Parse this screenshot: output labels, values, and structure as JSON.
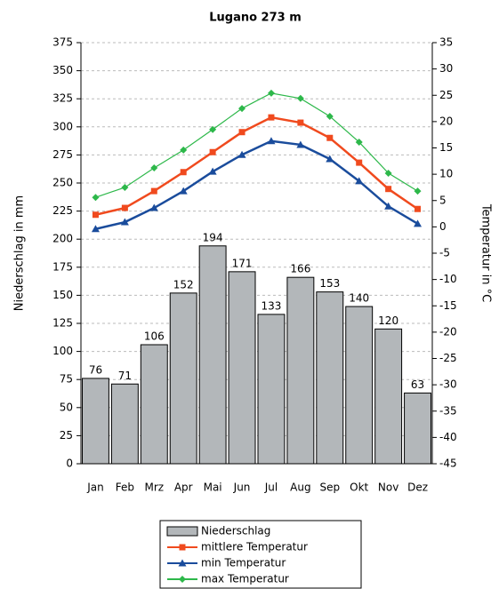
{
  "chart_data": {
    "type": "bar",
    "title": "Lugano 273 m",
    "categories": [
      "Jan",
      "Feb",
      "Mrz",
      "Apr",
      "Mai",
      "Jun",
      "Jul",
      "Aug",
      "Sep",
      "Okt",
      "Nov",
      "Dez"
    ],
    "y_label": "Niederschlag in mm",
    "y2_label": "Temperatur in °C",
    "ylim": [
      0,
      375
    ],
    "yticks": [
      0,
      25,
      50,
      75,
      100,
      125,
      150,
      175,
      200,
      225,
      250,
      275,
      300,
      325,
      350,
      375
    ],
    "y2lim": [
      -45,
      35
    ],
    "y2ticks": [
      -45,
      -40,
      -35,
      -30,
      -25,
      -20,
      -15,
      -10,
      -5,
      0,
      5,
      10,
      15,
      20,
      25,
      30,
      35
    ],
    "grid": true,
    "series": [
      {
        "name": "Niederschlag",
        "type": "bar",
        "color": "#b3b7ba",
        "values": [
          76,
          71,
          106,
          152,
          194,
          171,
          133,
          166,
          153,
          140,
          120,
          63
        ]
      },
      {
        "name": "mittlere Temperatur",
        "type": "line",
        "axis": "y2",
        "marker": "square",
        "color": "#f04a1e",
        "values": [
          2.3,
          3.6,
          6.8,
          10.4,
          14.2,
          18.0,
          20.8,
          19.8,
          16.9,
          12.2,
          7.2,
          3.4
        ]
      },
      {
        "name": "min Temperatur",
        "type": "line",
        "axis": "y2",
        "marker": "triangle",
        "color": "#1a4c9c",
        "values": [
          -0.4,
          0.9,
          3.6,
          6.8,
          10.5,
          13.7,
          16.3,
          15.6,
          12.9,
          8.7,
          3.9,
          0.6
        ]
      },
      {
        "name": "max Temperatur",
        "type": "line",
        "axis": "y2",
        "marker": "diamond",
        "color": "#2db84a",
        "values": [
          5.6,
          7.5,
          11.2,
          14.6,
          18.5,
          22.5,
          25.4,
          24.4,
          21.0,
          16.1,
          10.2,
          6.8
        ]
      }
    ]
  }
}
